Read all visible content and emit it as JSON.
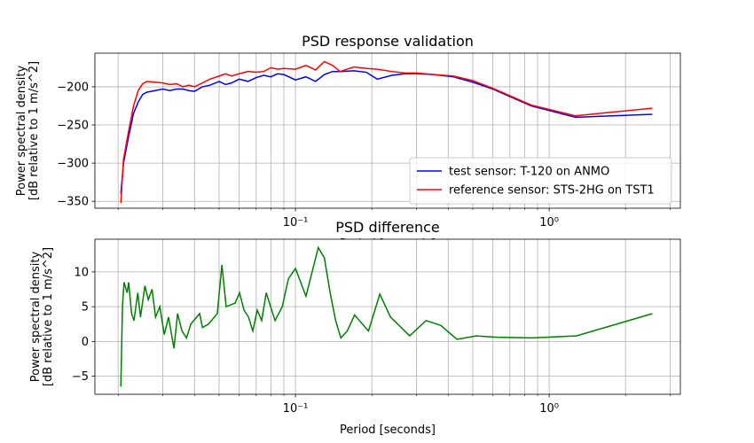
{
  "chart_data": [
    {
      "type": "line",
      "title": "PSD response validation",
      "xlabel": "Period [seconds]",
      "ylabel": [
        "Power spectral density",
        "[dB relative to 1 m/s^2]"
      ],
      "xscale": "log",
      "xlim": [
        0.0162,
        3.29
      ],
      "ylim": [
        -359,
        -156
      ],
      "xticks": [
        {
          "value": 0.1,
          "label": "10⁻¹"
        },
        {
          "value": 1,
          "label": "10⁰"
        }
      ],
      "xminorticks": [
        0.02,
        0.03,
        0.04,
        0.05,
        0.06,
        0.07,
        0.08,
        0.09,
        0.2,
        0.3,
        0.4,
        0.5,
        0.6,
        0.7,
        0.8,
        0.9,
        2,
        3
      ],
      "yticks": [
        {
          "value": -200,
          "label": "−200"
        },
        {
          "value": -250,
          "label": "−250"
        },
        {
          "value": -300,
          "label": "−300"
        },
        {
          "value": -350,
          "label": "−350"
        }
      ],
      "grid": true,
      "legend": "lower right",
      "x": [
        0.0205,
        0.021,
        0.022,
        0.023,
        0.024,
        0.025,
        0.026,
        0.028,
        0.03,
        0.032,
        0.034,
        0.036,
        0.038,
        0.04,
        0.043,
        0.046,
        0.05,
        0.053,
        0.056,
        0.06,
        0.065,
        0.07,
        0.075,
        0.08,
        0.085,
        0.09,
        0.1,
        0.11,
        0.12,
        0.13,
        0.14,
        0.15,
        0.17,
        0.19,
        0.21,
        0.24,
        0.27,
        0.3,
        0.35,
        0.42,
        0.5,
        0.6,
        0.85,
        1.27,
        2.55
      ],
      "series": [
        {
          "name": "test sensor: T-120 on ANMO",
          "color": "#0000ff",
          "values": [
            -340,
            -300,
            -265,
            -235,
            -220,
            -210,
            -207,
            -205,
            -203,
            -205,
            -203,
            -203,
            -205,
            -206,
            -200,
            -198,
            -193,
            -197,
            -195,
            -190,
            -193,
            -188,
            -185,
            -187,
            -183,
            -184,
            -191,
            -187,
            -193,
            -184,
            -180,
            -180,
            -179,
            -181,
            -190,
            -185,
            -183,
            -183,
            -184,
            -187,
            -194,
            -203,
            -225,
            -240,
            -236
          ]
        },
        {
          "name": "reference sensor: STS-2HG on TST1",
          "color": "#ff0000",
          "values": [
            -352,
            -295,
            -258,
            -225,
            -205,
            -196,
            -193,
            -194,
            -195,
            -197,
            -196,
            -200,
            -198,
            -200,
            -195,
            -190,
            -186,
            -183,
            -186,
            -183,
            -180,
            -181,
            -180,
            -175,
            -177,
            -176,
            -177,
            -172,
            -178,
            -167,
            -172,
            -180,
            -174,
            -176,
            -177,
            -180,
            -182,
            -182,
            -184,
            -186,
            -192,
            -202,
            -224,
            -238,
            -228
          ]
        }
      ]
    },
    {
      "type": "line",
      "title": "PSD difference",
      "xlabel": "Period [seconds]",
      "ylabel": [
        "Power spectral density",
        "[dB relative to 1 m/s^2]"
      ],
      "xscale": "log",
      "xlim": [
        0.0162,
        3.29
      ],
      "ylim": [
        -7.6,
        14.7
      ],
      "xticks": [
        {
          "value": 0.1,
          "label": "10⁻¹"
        },
        {
          "value": 1,
          "label": "10⁰"
        }
      ],
      "xminorticks": [
        0.02,
        0.03,
        0.04,
        0.05,
        0.06,
        0.07,
        0.08,
        0.09,
        0.2,
        0.3,
        0.4,
        0.5,
        0.6,
        0.7,
        0.8,
        0.9,
        2,
        3
      ],
      "yticks": [
        10,
        5,
        0,
        {
          "value": -5,
          "label": "−5"
        }
      ],
      "grid": true,
      "x": [
        0.0205,
        0.0208,
        0.0211,
        0.0217,
        0.022,
        0.0226,
        0.0231,
        0.0239,
        0.0245,
        0.0255,
        0.0263,
        0.0272,
        0.0281,
        0.0292,
        0.0304,
        0.0316,
        0.0332,
        0.0343,
        0.0357,
        0.0372,
        0.0387,
        0.0419,
        0.043,
        0.0454,
        0.0492,
        0.0513,
        0.0533,
        0.0578,
        0.0602,
        0.0627,
        0.0653,
        0.0679,
        0.0707,
        0.0736,
        0.0767,
        0.0798,
        0.0831,
        0.0887,
        0.0938,
        0.1,
        0.11,
        0.123,
        0.13,
        0.137,
        0.144,
        0.151,
        0.16,
        0.171,
        0.194,
        0.215,
        0.237,
        0.282,
        0.327,
        0.374,
        0.433,
        0.516,
        0.622,
        0.859,
        1.28,
        2.55
      ],
      "series": [
        {
          "color": "#008000",
          "values": [
            -6.5,
            5,
            8.5,
            7,
            8.5,
            4,
            3,
            7,
            3.5,
            8,
            6,
            7.5,
            3.5,
            5,
            1,
            3.5,
            -1,
            4,
            1.5,
            0.5,
            2.5,
            4,
            2,
            2.5,
            4,
            11,
            5,
            5.5,
            7,
            4.5,
            3.5,
            1.5,
            4.5,
            3,
            7,
            5,
            3,
            5,
            9,
            10.5,
            6.5,
            13.5,
            12,
            7,
            3,
            0.5,
            1.5,
            3.8,
            1.5,
            6.8,
            3.5,
            0.8,
            3,
            2.3,
            0.3,
            0.8,
            0.6,
            0.5,
            0.8,
            4
          ]
        }
      ]
    }
  ]
}
